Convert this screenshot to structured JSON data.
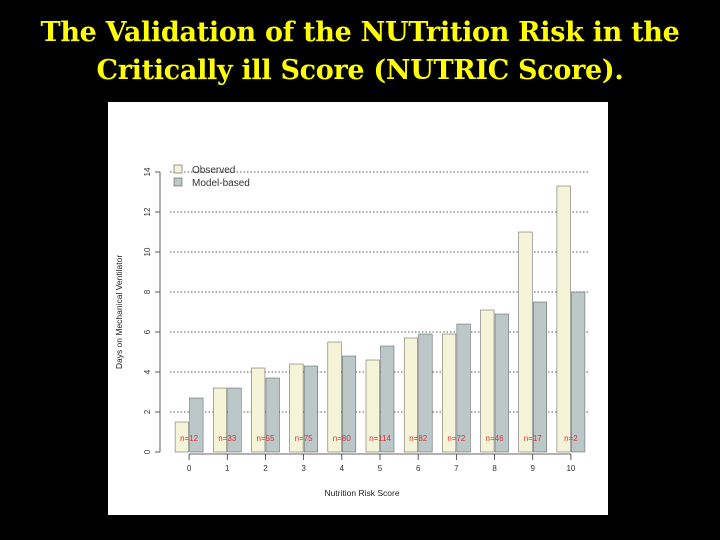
{
  "slide": {
    "title_line1": "The Validation of the NUTrition Risk in the",
    "title_line2": "Critically ill Score (NUTRIC Score)."
  },
  "colors": {
    "background": "#000000",
    "title": "#ffff00",
    "observed_fill": "#f5f3d8",
    "model_fill": "#bcc8c8",
    "n_label": "#e03030",
    "grid": "#222222"
  },
  "chart_data": {
    "type": "bar",
    "title": "",
    "xlabel": "Nutrition Risk Score",
    "ylabel": "Days on Mechanical Ventilator",
    "categories": [
      "0",
      "1",
      "2",
      "3",
      "4",
      "5",
      "6",
      "7",
      "8",
      "9",
      "10"
    ],
    "ylim": [
      0,
      14
    ],
    "yticks": [
      "0",
      "2",
      "4",
      "6",
      "8",
      "10",
      "12",
      "14"
    ],
    "grid": "horizontal dotted",
    "legend_position": "top-left",
    "series": [
      {
        "name": "Observed",
        "values": [
          1.5,
          3.2,
          4.2,
          4.4,
          5.5,
          4.6,
          5.7,
          5.9,
          7.1,
          11.0,
          13.3
        ]
      },
      {
        "name": "Model-based",
        "values": [
          2.7,
          3.2,
          3.7,
          4.3,
          4.8,
          5.3,
          5.9,
          6.4,
          6.9,
          7.5,
          8.0
        ]
      }
    ],
    "sample_sizes": [
      "n=12",
      "n=33",
      "n=55",
      "n=75",
      "n=80",
      "n=114",
      "n=82",
      "n=72",
      "n=46",
      "n=17",
      "n=2"
    ]
  }
}
